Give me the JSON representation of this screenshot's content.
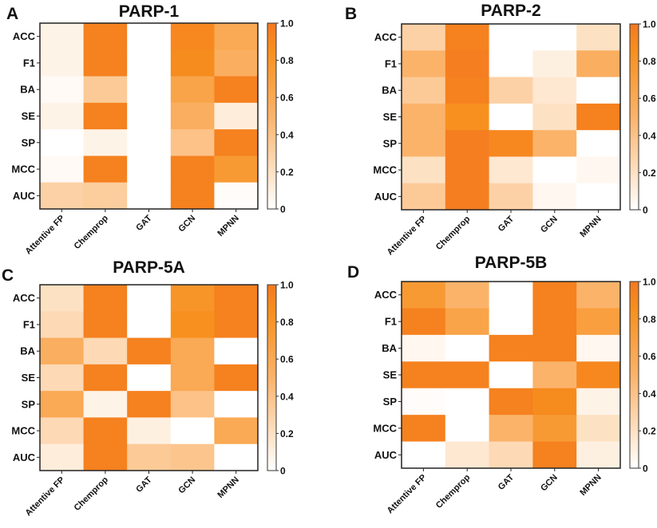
{
  "chart_data": [
    {
      "type": "heatmap",
      "panel_letter": "A",
      "title": "PARP-1",
      "x_categories": [
        "Attentive FP",
        "Chemprop",
        "GAT",
        "GCN",
        "MPNN"
      ],
      "y_categories": [
        "ACC",
        "F1",
        "BA",
        "SE",
        "SP",
        "MCC",
        "AUC"
      ],
      "values": [
        [
          0.08,
          0.95,
          0,
          0.9,
          0.6
        ],
        [
          0.08,
          0.95,
          0,
          0.88,
          0.55
        ],
        [
          0.03,
          0.35,
          0,
          0.65,
          0.95
        ],
        [
          0.08,
          0.95,
          0,
          0.55,
          0.12
        ],
        [
          0,
          0.08,
          0,
          0.4,
          0.95
        ],
        [
          0.03,
          0.95,
          0,
          0.95,
          0.75
        ],
        [
          0.3,
          0.33,
          0,
          0.95,
          0.02
        ]
      ],
      "colorbar": {
        "range": [
          0,
          1
        ],
        "ticks": [
          "0",
          "0.2",
          "0.4",
          "0.6",
          "0.8",
          "1.0"
        ]
      }
    },
    {
      "type": "heatmap",
      "panel_letter": "B",
      "title": "PARP-2",
      "x_categories": [
        "Attentive FP",
        "Chemprop",
        "GAT",
        "GCN",
        "MPNN"
      ],
      "y_categories": [
        "ACC",
        "F1",
        "BA",
        "SE",
        "SP",
        "MCC",
        "AUC"
      ],
      "values": [
        [
          0.3,
          0.95,
          0,
          0,
          0.2
        ],
        [
          0.5,
          0.97,
          0,
          0.1,
          0.55
        ],
        [
          0.35,
          0.95,
          0.3,
          0.15,
          0
        ],
        [
          0.5,
          0.85,
          0,
          0.2,
          0.95
        ],
        [
          0.5,
          0.97,
          0.9,
          0.5,
          0
        ],
        [
          0.2,
          0.97,
          0.15,
          0,
          0.05
        ],
        [
          0.35,
          0.97,
          0.3,
          0.05,
          0
        ]
      ],
      "colorbar": {
        "range": [
          0,
          1
        ],
        "ticks": [
          "0",
          "0.2",
          "0.4",
          "0.6",
          "0.8",
          "1.0"
        ]
      }
    },
    {
      "type": "heatmap",
      "panel_letter": "C",
      "title": "PARP-5A",
      "x_categories": [
        "Attentive FP",
        "Chemprop",
        "GAT",
        "GCN",
        "MPNN"
      ],
      "y_categories": [
        "ACC",
        "F1",
        "BA",
        "SE",
        "SP",
        "MCC",
        "AUC"
      ],
      "values": [
        [
          0.2,
          0.95,
          0,
          0.8,
          0.95
        ],
        [
          0.25,
          0.95,
          0,
          0.85,
          0.95
        ],
        [
          0.55,
          0.25,
          0.95,
          0.6,
          0
        ],
        [
          0.25,
          0.95,
          0,
          0.6,
          0.95
        ],
        [
          0.6,
          0.08,
          0.95,
          0.4,
          0
        ],
        [
          0.25,
          0.95,
          0.1,
          0,
          0.6
        ],
        [
          0.12,
          0.95,
          0.35,
          0.38,
          0
        ]
      ],
      "colorbar": {
        "range": [
          0,
          1
        ],
        "ticks": [
          "0",
          "0.2",
          "0.4",
          "0.6",
          "0.8",
          "1.0"
        ]
      }
    },
    {
      "type": "heatmap",
      "panel_letter": "D",
      "title": "PARP-5B",
      "x_categories": [
        "Attentive FP",
        "Chemprop",
        "GAT",
        "GCN",
        "MPNN"
      ],
      "y_categories": [
        "ACC",
        "F1",
        "BA",
        "SE",
        "SP",
        "MCC",
        "AUC"
      ],
      "values": [
        [
          0.75,
          0.5,
          0,
          0.95,
          0.5
        ],
        [
          0.95,
          0.65,
          0,
          0.95,
          0.7
        ],
        [
          0.05,
          0,
          0.95,
          0.95,
          0.05
        ],
        [
          0.95,
          0.95,
          0,
          0.5,
          0.9
        ],
        [
          0.02,
          0,
          0.95,
          0.88,
          0.08
        ],
        [
          0.95,
          0,
          0.5,
          0.75,
          0.2
        ],
        [
          0,
          0.15,
          0.25,
          0.95,
          0.1
        ]
      ],
      "colorbar": {
        "range": [
          0,
          1
        ],
        "ticks": [
          "0",
          "0.2",
          "0.4",
          "0.6",
          "0.8",
          "1.0"
        ]
      }
    }
  ],
  "colors": {
    "low": "#FFFFFF",
    "mid": "#FBB36A",
    "high_mid": "#F7901E",
    "high": "#F47920"
  }
}
